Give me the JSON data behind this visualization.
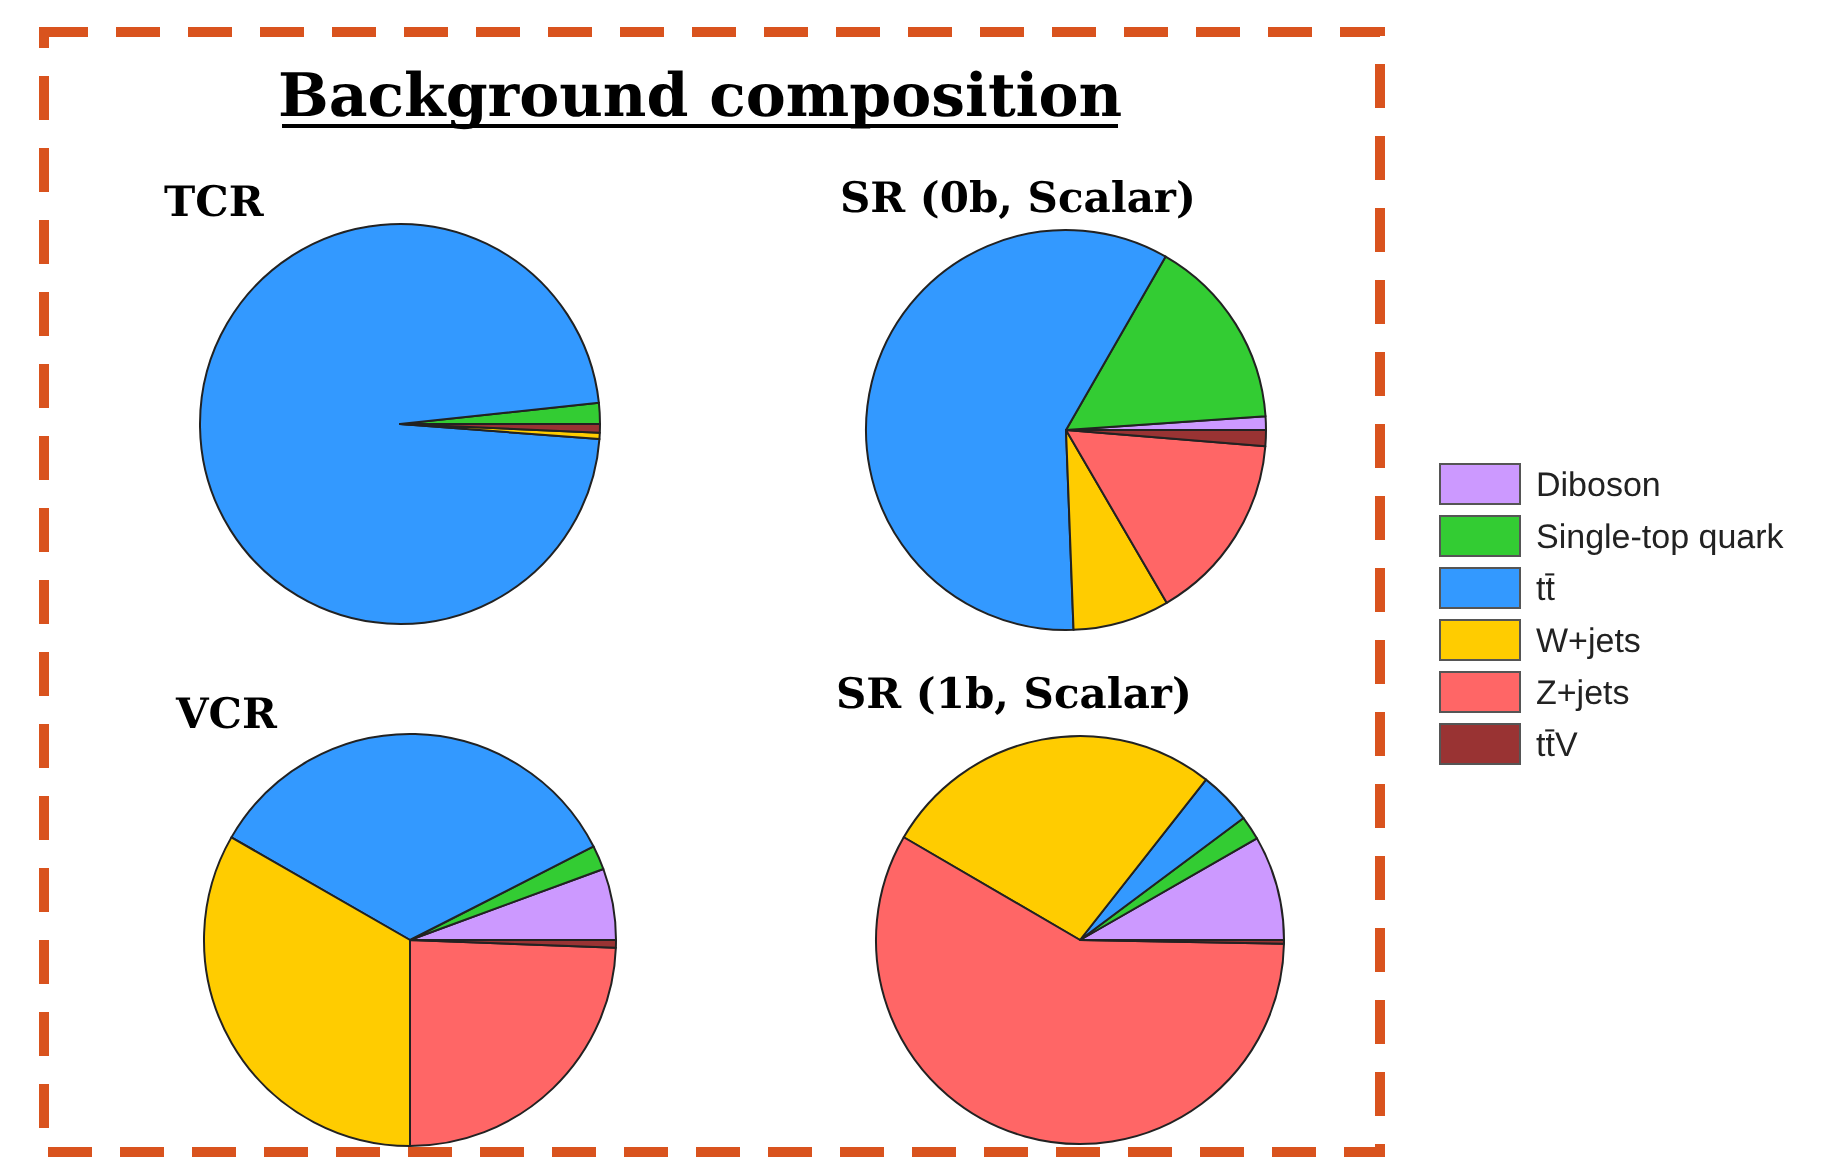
{
  "chart_data": [
    {
      "type": "pie",
      "title": "TCR",
      "annotations": [
        "Background composition"
      ],
      "categories": [
        null,
        null,
        null,
        null,
        null,
        null
      ],
      "values": [
        null,
        1.7,
        97.1,
        0.5,
        null,
        0.7
      ],
      "colors": [
        null,
        "#33cc33",
        "#3399ff",
        "#ffcc00",
        null,
        "#993333"
      ]
    },
    {
      "type": "pie",
      "title": "SR (0b, Scalar)",
      "legend": "right",
      "categories": [
        "Diboson",
        "Single-top quark",
        "tt̄",
        "W+jets",
        "Z+jets",
        "tt̄V"
      ],
      "values": [
        1.1,
        15.6,
        58.9,
        7.8,
        15.3,
        1.3
      ],
      "colors": [
        "#cc99ff",
        "#33cc33",
        "#3399ff",
        "#ffcc00",
        "#ff6666",
        "#993333"
      ]
    },
    {
      "type": "pie",
      "title": "VCR",
      "categories": [
        null,
        null,
        null,
        null,
        null,
        null
      ],
      "values": [
        5.6,
        1.9,
        34.2,
        33.3,
        24.4,
        0.6
      ],
      "colors": [
        "#cc99ff",
        "#33cc33",
        "#3399ff",
        "#ffcc00",
        "#ff6666",
        "#993333"
      ]
    },
    {
      "type": "pie",
      "title": "SR (1b, Scalar)",
      "categories": [
        null,
        null,
        null,
        null,
        null,
        null
      ],
      "values": [
        8.3,
        1.9,
        4.2,
        27.2,
        58.1,
        0.3
      ],
      "colors": [
        "#cc99ff",
        "#33cc33",
        "#3399ff",
        "#ffcc00",
        "#ff6666",
        "#993333"
      ]
    }
  ]
}
